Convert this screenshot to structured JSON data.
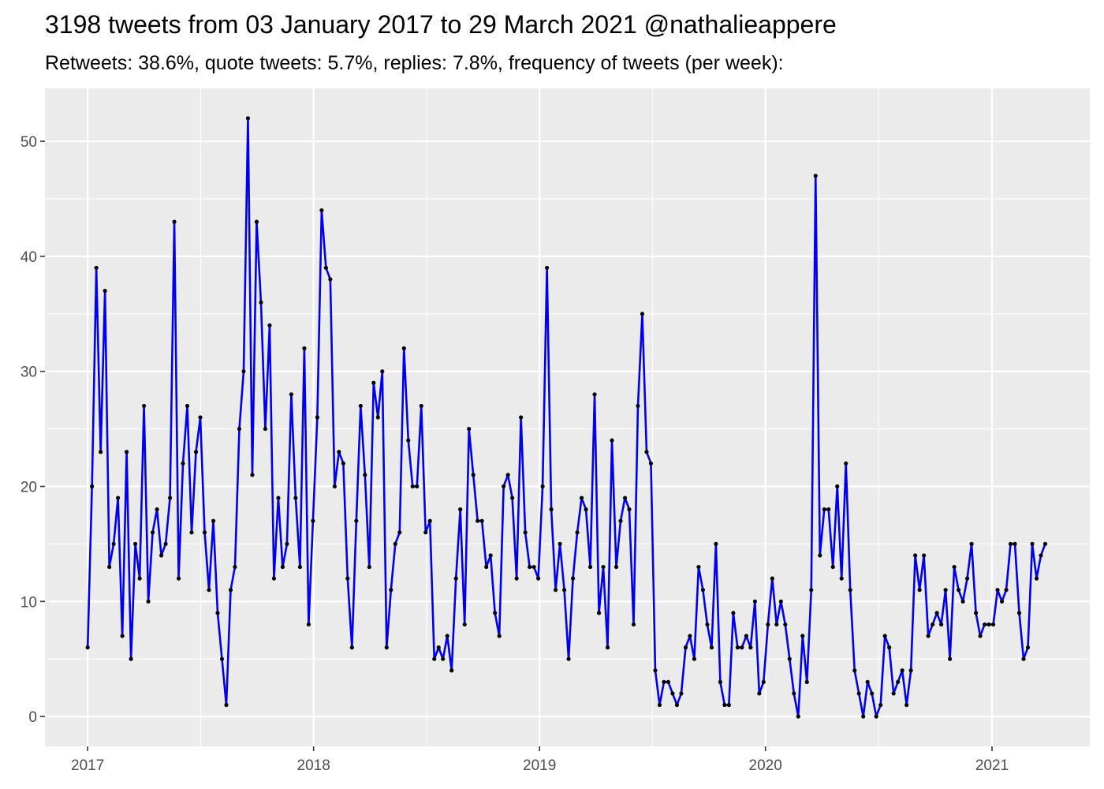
{
  "chart_data": {
    "type": "line",
    "title": "3198 tweets from 03 January 2017 to 29 March 2021 @nathalieappere",
    "subtitle": "Retweets: 38.6%, quote tweets: 5.7%, replies: 7.8%, frequency of tweets (per week):",
    "xlabel": "",
    "ylabel": "",
    "x_ticks": [
      "2017",
      "2018",
      "2019",
      "2020",
      "2021"
    ],
    "y_ticks": [
      0,
      10,
      20,
      30,
      40,
      50
    ],
    "xlim": [
      "2016-10-24",
      "2021-06-08"
    ],
    "ylim": [
      -2.6,
      54.6
    ],
    "grid": true,
    "legend": "none",
    "line_color": "#0000ee",
    "point_color": "#000000",
    "panel_color": "#ebebeb",
    "start_date": "2017-01-01",
    "values": [
      6,
      20,
      39,
      23,
      37,
      13,
      15,
      19,
      7,
      23,
      5,
      15,
      12,
      27,
      10,
      16,
      18,
      14,
      15,
      19,
      43,
      12,
      22,
      27,
      16,
      23,
      26,
      16,
      11,
      17,
      9,
      5,
      1,
      11,
      13,
      25,
      30,
      52,
      21,
      43,
      36,
      25,
      34,
      12,
      19,
      13,
      15,
      28,
      19,
      13,
      32,
      8,
      17,
      26,
      44,
      39,
      38,
      20,
      23,
      22,
      12,
      6,
      17,
      27,
      21,
      13,
      29,
      26,
      30,
      6,
      11,
      15,
      16,
      32,
      24,
      20,
      20,
      27,
      16,
      17,
      5,
      6,
      5,
      7,
      4,
      12,
      18,
      8,
      25,
      21,
      17,
      17,
      13,
      14,
      9,
      7,
      20,
      21,
      19,
      12,
      26,
      16,
      13,
      13,
      12,
      20,
      39,
      18,
      11,
      15,
      11,
      5,
      12,
      16,
      19,
      18,
      13,
      28,
      9,
      13,
      6,
      24,
      13,
      17,
      19,
      18,
      8,
      27,
      35,
      23,
      22,
      4,
      1,
      3,
      3,
      2,
      1,
      2,
      6,
      7,
      5,
      13,
      11,
      8,
      6,
      15,
      3,
      1,
      1,
      9,
      6,
      6,
      7,
      6,
      10,
      2,
      3,
      8,
      12,
      8,
      10,
      8,
      5,
      2,
      0,
      7,
      3,
      11,
      47,
      14,
      18,
      18,
      13,
      20,
      12,
      22,
      11,
      4,
      2,
      0,
      3,
      2,
      0,
      1,
      7,
      6,
      2,
      3,
      4,
      1,
      4,
      14,
      11,
      14,
      7,
      8,
      9,
      8,
      11,
      5,
      13,
      11,
      10,
      12,
      15,
      9,
      7,
      8,
      8,
      8,
      11,
      10,
      11,
      15,
      15,
      9,
      5,
      6,
      15,
      12,
      14,
      15
    ]
  }
}
